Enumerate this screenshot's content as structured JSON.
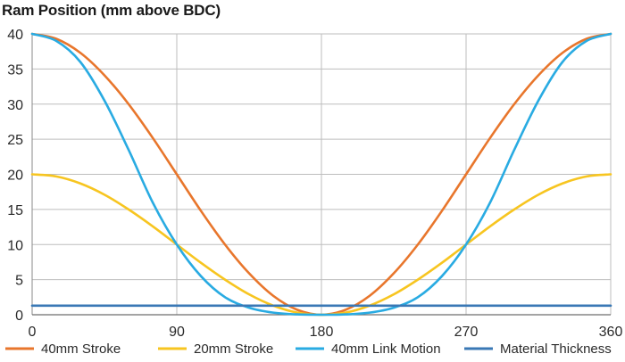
{
  "chart_data": {
    "type": "line",
    "title": "Ram Position (mm above BDC)",
    "xlabel": "",
    "ylabel": "",
    "xlim": [
      0,
      360
    ],
    "ylim": [
      0,
      40
    ],
    "x_ticks": [
      0,
      90,
      180,
      270,
      360
    ],
    "y_ticks": [
      0,
      5,
      10,
      15,
      20,
      25,
      30,
      35,
      40
    ],
    "grid": true,
    "legend_position": "bottom",
    "series": [
      {
        "name": "40mm Stroke",
        "color": "#e8762c",
        "x": [
          0,
          15,
          30,
          45,
          60,
          75,
          90,
          105,
          120,
          135,
          150,
          165,
          180,
          195,
          210,
          225,
          240,
          255,
          270,
          285,
          300,
          315,
          330,
          345,
          360
        ],
        "values": [
          40,
          39.3,
          37.3,
          34.1,
          30,
          25.2,
          20,
          14.8,
          10,
          5.9,
          2.7,
          0.7,
          0,
          0.7,
          2.7,
          5.9,
          10,
          14.8,
          20,
          25.2,
          30,
          34.1,
          37.3,
          39.3,
          40
        ]
      },
      {
        "name": "20mm Stroke",
        "color": "#f7c520",
        "x": [
          0,
          15,
          30,
          45,
          60,
          75,
          90,
          105,
          120,
          135,
          150,
          165,
          180,
          195,
          210,
          225,
          240,
          255,
          270,
          285,
          300,
          315,
          330,
          345,
          360
        ],
        "values": [
          20,
          19.7,
          18.7,
          17.1,
          15,
          12.6,
          10,
          7.4,
          5,
          2.9,
          1.3,
          0.3,
          0,
          0.3,
          1.3,
          2.9,
          5,
          7.4,
          10,
          12.6,
          15,
          17.1,
          18.7,
          19.7,
          20
        ]
      },
      {
        "name": "40mm Link Motion",
        "color": "#29abe2",
        "x": [
          0,
          15,
          30,
          45,
          60,
          75,
          90,
          105,
          120,
          135,
          150,
          165,
          180,
          195,
          210,
          225,
          240,
          255,
          270,
          285,
          300,
          315,
          330,
          345,
          360
        ],
        "values": [
          40,
          39,
          36,
          30.5,
          23.5,
          16,
          10,
          5.5,
          2.5,
          1,
          0.3,
          0.05,
          0,
          0.05,
          0.3,
          1,
          2.5,
          5.5,
          10,
          16,
          23.5,
          30.5,
          36,
          39,
          40
        ]
      },
      {
        "name": "Material Thickness",
        "color": "#3a78b5",
        "x": [
          0,
          360
        ],
        "values": [
          1.3,
          1.3
        ]
      }
    ]
  }
}
